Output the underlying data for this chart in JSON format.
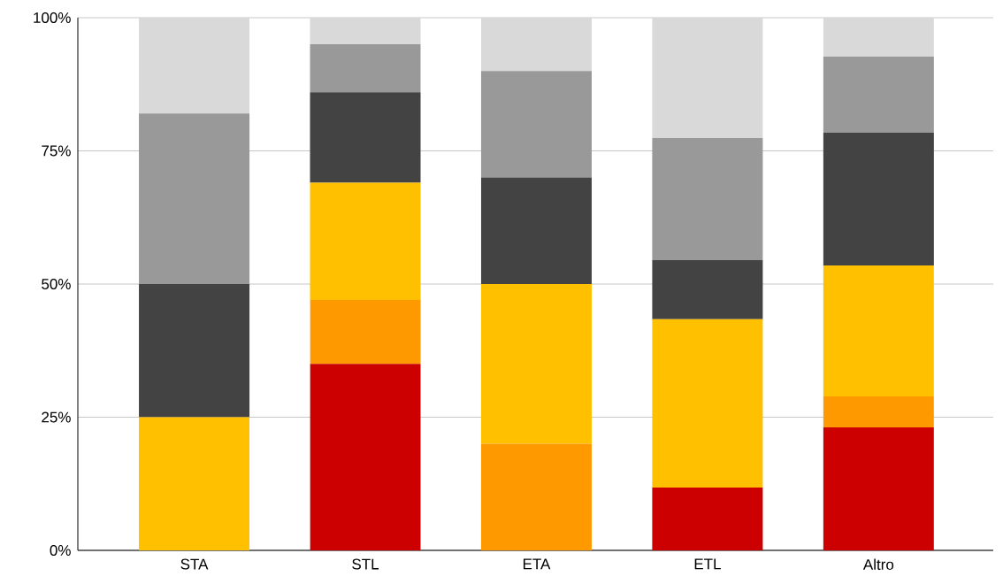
{
  "chart_data": {
    "type": "bar",
    "stacked": true,
    "categories": [
      "STA",
      "STL",
      "ETA",
      "ETL",
      "Altro"
    ],
    "series": [
      {
        "color": "#cc0000",
        "values": [
          0,
          35,
          0,
          11.8,
          23.1
        ]
      },
      {
        "color": "#ff9900",
        "values": [
          0,
          12,
          20,
          0,
          5.8
        ]
      },
      {
        "color": "#ffc000",
        "values": [
          25,
          22,
          30,
          31.6,
          24.6
        ]
      },
      {
        "color": "#434343",
        "values": [
          25,
          17,
          20,
          11.1,
          24.9
        ]
      },
      {
        "color": "#999999",
        "values": [
          32,
          9,
          20,
          22.9,
          14.3
        ]
      },
      {
        "color": "#d9d9d9",
        "values": [
          18,
          5,
          10,
          22.6,
          7.3
        ]
      }
    ],
    "ylim": [
      0,
      100
    ],
    "yticks": [
      {
        "value": 0,
        "label": "0%"
      },
      {
        "value": 25,
        "label": "25%"
      },
      {
        "value": 50,
        "label": "50%"
      },
      {
        "value": 75,
        "label": "75%"
      },
      {
        "value": 100,
        "label": "100%"
      }
    ],
    "grid": "y"
  }
}
